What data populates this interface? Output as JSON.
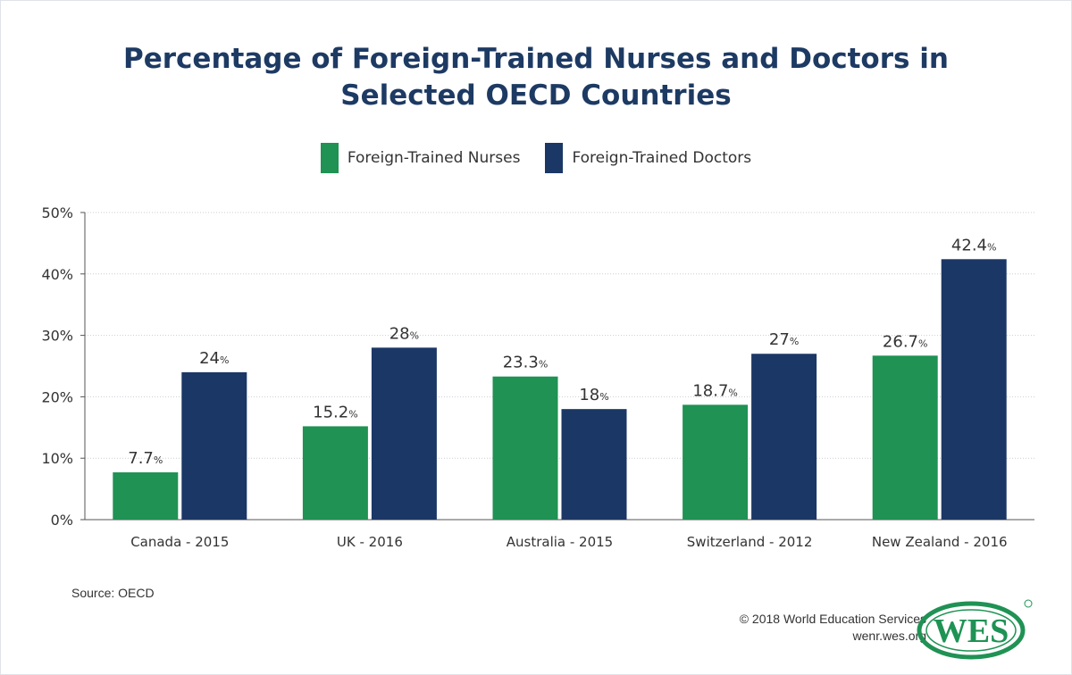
{
  "title_line1": "Percentage of Foreign-Trained Nurses and Doctors in",
  "title_line2": "Selected OECD Countries",
  "legend": [
    {
      "label": "Foreign-Trained Nurses",
      "color": "#1f9254"
    },
    {
      "label": "Foreign-Trained Doctors",
      "color": "#1b3765"
    }
  ],
  "source": "Source: OECD",
  "copyright": "© 2018 World Education Services",
  "website": "wenr.wes.org",
  "logo_text": "WES",
  "chart_data": {
    "type": "bar",
    "categories": [
      "Canada - 2015",
      "UK - 2016",
      "Australia - 2015",
      "Switzerland - 2012",
      "New Zealand - 2016"
    ],
    "series": [
      {
        "name": "Foreign-Trained Nurses",
        "color": "#1f9254",
        "values": [
          7.7,
          15.2,
          23.3,
          18.7,
          26.7
        ],
        "labels": [
          "7.7",
          "15.2",
          "23.3",
          "18.7",
          "26.7"
        ]
      },
      {
        "name": "Foreign-Trained Doctors",
        "color": "#1b3765",
        "values": [
          24,
          28,
          18,
          27,
          42.4
        ],
        "labels": [
          "24",
          "28",
          "18",
          "27",
          "42.4"
        ]
      }
    ],
    "label_suffix": "%",
    "ylim": [
      0,
      50
    ],
    "yticks": [
      0,
      10,
      20,
      30,
      40,
      50
    ],
    "ytick_labels": [
      "0%",
      "10%",
      "20%",
      "30%",
      "40%",
      "50%"
    ],
    "grid": true,
    "legend_position": "top-center"
  }
}
